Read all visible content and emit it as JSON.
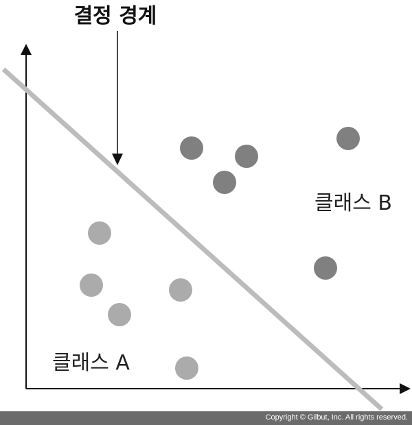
{
  "diagram": {
    "boundary_label": "결정 경계",
    "class_a_label": "클래스 A",
    "class_b_label": "클래스 B",
    "colors": {
      "class_a_points": "#ababab",
      "class_b_points": "#808080",
      "boundary_line": "#bcbcbc",
      "axes": "#111111"
    }
  },
  "footer": {
    "text": "Copyright © Gilbut, Inc. All rights reserved."
  }
}
